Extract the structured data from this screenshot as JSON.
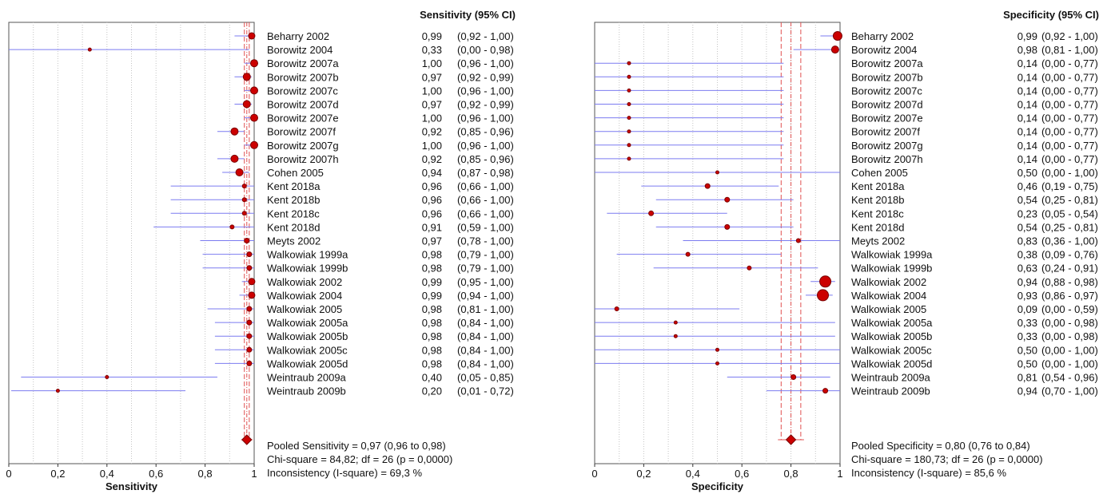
{
  "chart_data": [
    {
      "type": "forest",
      "header": "Sensitivity (95% CI)",
      "xlabel": "Sensitivity",
      "xlim": [
        0,
        1
      ],
      "xticks": [
        "0",
        "0,2",
        "0,4",
        "0,6",
        "0,8",
        "1"
      ],
      "grid": true,
      "studies": [
        {
          "name": "Beharry 2002",
          "value": 0.99,
          "lo": 0.92,
          "hi": 1.0,
          "value_label": "0,99",
          "ci_label": "(0,92 - 1,00)",
          "weight": 8
        },
        {
          "name": "Borowitz 2004",
          "value": 0.33,
          "lo": 0.0,
          "hi": 0.98,
          "value_label": "0,33",
          "ci_label": "(0,00 - 0,98)",
          "weight": 4
        },
        {
          "name": "Borowitz 2007a",
          "value": 1.0,
          "lo": 0.96,
          "hi": 1.0,
          "value_label": "1,00",
          "ci_label": "(0,96 - 1,00)",
          "weight": 9
        },
        {
          "name": "Borowitz 2007b",
          "value": 0.97,
          "lo": 0.92,
          "hi": 0.99,
          "value_label": "0,97",
          "ci_label": "(0,92 - 0,99)",
          "weight": 9
        },
        {
          "name": "Borowitz 2007c",
          "value": 1.0,
          "lo": 0.96,
          "hi": 1.0,
          "value_label": "1,00",
          "ci_label": "(0,96 - 1,00)",
          "weight": 9
        },
        {
          "name": "Borowitz 2007d",
          "value": 0.97,
          "lo": 0.92,
          "hi": 0.99,
          "value_label": "0,97",
          "ci_label": "(0,92 - 0,99)",
          "weight": 9
        },
        {
          "name": "Borowitz 2007e",
          "value": 1.0,
          "lo": 0.96,
          "hi": 1.0,
          "value_label": "1,00",
          "ci_label": "(0,96 - 1,00)",
          "weight": 9
        },
        {
          "name": "Borowitz 2007f",
          "value": 0.92,
          "lo": 0.85,
          "hi": 0.96,
          "value_label": "0,92",
          "ci_label": "(0,85 - 0,96)",
          "weight": 9
        },
        {
          "name": "Borowitz 2007g",
          "value": 1.0,
          "lo": 0.96,
          "hi": 1.0,
          "value_label": "1,00",
          "ci_label": "(0,96 - 1,00)",
          "weight": 9
        },
        {
          "name": "Borowitz 2007h",
          "value": 0.92,
          "lo": 0.85,
          "hi": 0.96,
          "value_label": "0,92",
          "ci_label": "(0,85 - 0,96)",
          "weight": 9
        },
        {
          "name": "Cohen 2005",
          "value": 0.94,
          "lo": 0.87,
          "hi": 0.98,
          "value_label": "0,94",
          "ci_label": "(0,87 - 0,98)",
          "weight": 9
        },
        {
          "name": "Kent 2018a",
          "value": 0.96,
          "lo": 0.66,
          "hi": 1.0,
          "value_label": "0,96",
          "ci_label": "(0,66 - 1,00)",
          "weight": 5
        },
        {
          "name": "Kent 2018b",
          "value": 0.96,
          "lo": 0.66,
          "hi": 1.0,
          "value_label": "0,96",
          "ci_label": "(0,66 - 1,00)",
          "weight": 5
        },
        {
          "name": "Kent 2018c",
          "value": 0.96,
          "lo": 0.66,
          "hi": 1.0,
          "value_label": "0,96",
          "ci_label": "(0,66 - 1,00)",
          "weight": 5
        },
        {
          "name": "Kent 2018d",
          "value": 0.91,
          "lo": 0.59,
          "hi": 1.0,
          "value_label": "0,91",
          "ci_label": "(0,59 - 1,00)",
          "weight": 5
        },
        {
          "name": "Meyts 2002",
          "value": 0.97,
          "lo": 0.78,
          "hi": 1.0,
          "value_label": "0,97",
          "ci_label": "(0,78 - 1,00)",
          "weight": 6
        },
        {
          "name": "Walkowiak 1999a",
          "value": 0.98,
          "lo": 0.79,
          "hi": 1.0,
          "value_label": "0,98",
          "ci_label": "(0,79 - 1,00)",
          "weight": 6
        },
        {
          "name": "Walkowiak 1999b",
          "value": 0.98,
          "lo": 0.79,
          "hi": 1.0,
          "value_label": "0,98",
          "ci_label": "(0,79 - 1,00)",
          "weight": 6
        },
        {
          "name": "Walkowiak 2002",
          "value": 0.99,
          "lo": 0.95,
          "hi": 1.0,
          "value_label": "0,99",
          "ci_label": "(0,95 - 1,00)",
          "weight": 8
        },
        {
          "name": "Walkowiak 2004",
          "value": 0.99,
          "lo": 0.94,
          "hi": 1.0,
          "value_label": "0,99",
          "ci_label": "(0,94 - 1,00)",
          "weight": 8
        },
        {
          "name": "Walkowiak 2005",
          "value": 0.98,
          "lo": 0.81,
          "hi": 1.0,
          "value_label": "0,98",
          "ci_label": "(0,81 - 1,00)",
          "weight": 6
        },
        {
          "name": "Walkowiak 2005a",
          "value": 0.98,
          "lo": 0.84,
          "hi": 1.0,
          "value_label": "0,98",
          "ci_label": "(0,84 - 1,00)",
          "weight": 6
        },
        {
          "name": "Walkowiak 2005b",
          "value": 0.98,
          "lo": 0.84,
          "hi": 1.0,
          "value_label": "0,98",
          "ci_label": "(0,84 - 1,00)",
          "weight": 6
        },
        {
          "name": "Walkowiak 2005c",
          "value": 0.98,
          "lo": 0.84,
          "hi": 1.0,
          "value_label": "0,98",
          "ci_label": "(0,84 - 1,00)",
          "weight": 6
        },
        {
          "name": "Walkowiak 2005d",
          "value": 0.98,
          "lo": 0.84,
          "hi": 1.0,
          "value_label": "0,98",
          "ci_label": "(0,84 - 1,00)",
          "weight": 6
        },
        {
          "name": "Weintraub 2009a",
          "value": 0.4,
          "lo": 0.05,
          "hi": 0.85,
          "value_label": "0,40",
          "ci_label": "(0,05 - 0,85)",
          "weight": 4
        },
        {
          "name": "Weintraub 2009b",
          "value": 0.2,
          "lo": 0.01,
          "hi": 0.72,
          "value_label": "0,20",
          "ci_label": "(0,01 - 0,72)",
          "weight": 4
        }
      ],
      "pooled": {
        "value": 0.97,
        "lo": 0.96,
        "hi": 0.98
      },
      "summary": [
        "Pooled Sensitivity = 0,97 (0,96 to 0,98)",
        "Chi-square = 84,82; df =  26 (p = 0,0000)",
        "Inconsistency (I-square) = 69,3 %"
      ]
    },
    {
      "type": "forest",
      "header": "Specificity (95% CI)",
      "xlabel": "Specificity",
      "xlim": [
        0,
        1
      ],
      "xticks": [
        "0",
        "0,2",
        "0,4",
        "0,6",
        "0,8",
        "1"
      ],
      "grid": true,
      "studies": [
        {
          "name": "Beharry 2002",
          "value": 0.99,
          "lo": 0.92,
          "hi": 1.0,
          "value_label": "0,99",
          "ci_label": "(0,92 - 1,00)",
          "weight": 11
        },
        {
          "name": "Borowitz 2004",
          "value": 0.98,
          "lo": 0.81,
          "hi": 1.0,
          "value_label": "0,98",
          "ci_label": "(0,81 - 1,00)",
          "weight": 9
        },
        {
          "name": "Borowitz 2007a",
          "value": 0.14,
          "lo": 0.0,
          "hi": 0.77,
          "value_label": "0,14",
          "ci_label": "(0,00 - 0,77)",
          "weight": 4
        },
        {
          "name": "Borowitz 2007b",
          "value": 0.14,
          "lo": 0.0,
          "hi": 0.77,
          "value_label": "0,14",
          "ci_label": "(0,00 - 0,77)",
          "weight": 4
        },
        {
          "name": "Borowitz 2007c",
          "value": 0.14,
          "lo": 0.0,
          "hi": 0.77,
          "value_label": "0,14",
          "ci_label": "(0,00 - 0,77)",
          "weight": 4
        },
        {
          "name": "Borowitz 2007d",
          "value": 0.14,
          "lo": 0.0,
          "hi": 0.77,
          "value_label": "0,14",
          "ci_label": "(0,00 - 0,77)",
          "weight": 4
        },
        {
          "name": "Borowitz 2007e",
          "value": 0.14,
          "lo": 0.0,
          "hi": 0.77,
          "value_label": "0,14",
          "ci_label": "(0,00 - 0,77)",
          "weight": 4
        },
        {
          "name": "Borowitz 2007f",
          "value": 0.14,
          "lo": 0.0,
          "hi": 0.77,
          "value_label": "0,14",
          "ci_label": "(0,00 - 0,77)",
          "weight": 4
        },
        {
          "name": "Borowitz 2007g",
          "value": 0.14,
          "lo": 0.0,
          "hi": 0.77,
          "value_label": "0,14",
          "ci_label": "(0,00 - 0,77)",
          "weight": 4
        },
        {
          "name": "Borowitz 2007h",
          "value": 0.14,
          "lo": 0.0,
          "hi": 0.77,
          "value_label": "0,14",
          "ci_label": "(0,00 - 0,77)",
          "weight": 4
        },
        {
          "name": "Cohen 2005",
          "value": 0.5,
          "lo": 0.0,
          "hi": 1.0,
          "value_label": "0,50",
          "ci_label": "(0,00 - 1,00)",
          "weight": 4
        },
        {
          "name": "Kent 2018a",
          "value": 0.46,
          "lo": 0.19,
          "hi": 0.75,
          "value_label": "0,46",
          "ci_label": "(0,19 - 0,75)",
          "weight": 6
        },
        {
          "name": "Kent 2018b",
          "value": 0.54,
          "lo": 0.25,
          "hi": 0.81,
          "value_label": "0,54",
          "ci_label": "(0,25 - 0,81)",
          "weight": 6
        },
        {
          "name": "Kent 2018c",
          "value": 0.23,
          "lo": 0.05,
          "hi": 0.54,
          "value_label": "0,23",
          "ci_label": "(0,05 - 0,54)",
          "weight": 6
        },
        {
          "name": "Kent 2018d",
          "value": 0.54,
          "lo": 0.25,
          "hi": 0.81,
          "value_label": "0,54",
          "ci_label": "(0,25 - 0,81)",
          "weight": 6
        },
        {
          "name": "Meyts 2002",
          "value": 0.83,
          "lo": 0.36,
          "hi": 1.0,
          "value_label": "0,83",
          "ci_label": "(0,36 - 1,00)",
          "weight": 5
        },
        {
          "name": "Walkowiak 1999a",
          "value": 0.38,
          "lo": 0.09,
          "hi": 0.76,
          "value_label": "0,38",
          "ci_label": "(0,09 - 0,76)",
          "weight": 5
        },
        {
          "name": "Walkowiak 1999b",
          "value": 0.63,
          "lo": 0.24,
          "hi": 0.91,
          "value_label": "0,63",
          "ci_label": "(0,24 - 0,91)",
          "weight": 5
        },
        {
          "name": "Walkowiak 2002",
          "value": 0.94,
          "lo": 0.88,
          "hi": 0.98,
          "value_label": "0,94",
          "ci_label": "(0,88 - 0,98)",
          "weight": 14
        },
        {
          "name": "Walkowiak 2004",
          "value": 0.93,
          "lo": 0.86,
          "hi": 0.97,
          "value_label": "0,93",
          "ci_label": "(0,86 - 0,97)",
          "weight": 14
        },
        {
          "name": "Walkowiak 2005",
          "value": 0.09,
          "lo": 0.0,
          "hi": 0.59,
          "value_label": "0,09",
          "ci_label": "(0,00 - 0,59)",
          "weight": 5
        },
        {
          "name": "Walkowiak 2005a",
          "value": 0.33,
          "lo": 0.0,
          "hi": 0.98,
          "value_label": "0,33",
          "ci_label": "(0,00 - 0,98)",
          "weight": 4
        },
        {
          "name": "Walkowiak 2005b",
          "value": 0.33,
          "lo": 0.0,
          "hi": 0.98,
          "value_label": "0,33",
          "ci_label": "(0,00 - 0,98)",
          "weight": 4
        },
        {
          "name": "Walkowiak 2005c",
          "value": 0.5,
          "lo": 0.0,
          "hi": 1.0,
          "value_label": "0,50",
          "ci_label": "(0,00 - 1,00)",
          "weight": 4
        },
        {
          "name": "Walkowiak 2005d",
          "value": 0.5,
          "lo": 0.0,
          "hi": 1.0,
          "value_label": "0,50",
          "ci_label": "(0,00 - 1,00)",
          "weight": 4
        },
        {
          "name": "Weintraub 2009a",
          "value": 0.81,
          "lo": 0.54,
          "hi": 0.96,
          "value_label": "0,81",
          "ci_label": "(0,54 - 0,96)",
          "weight": 6
        },
        {
          "name": "Weintraub 2009b",
          "value": 0.94,
          "lo": 0.7,
          "hi": 1.0,
          "value_label": "0,94",
          "ci_label": "(0,70 - 1,00)",
          "weight": 6
        }
      ],
      "pooled": {
        "value": 0.8,
        "lo": 0.76,
        "hi": 0.84
      },
      "summary": [
        "Pooled Specificity = 0,80 (0,76 to 0,84)",
        "Chi-square = 180,73; df =  26 (p = 0,0000)",
        "Inconsistency (I-square) = 85,6 %"
      ]
    }
  ],
  "colors": {
    "point_fill": "#cc0000",
    "point_stroke": "#7a0000",
    "ci_line": "#7b7bf0",
    "pooled_line": "#e05050",
    "grid": "#c4c4c4",
    "axis": "#333333",
    "text": "#111111"
  }
}
